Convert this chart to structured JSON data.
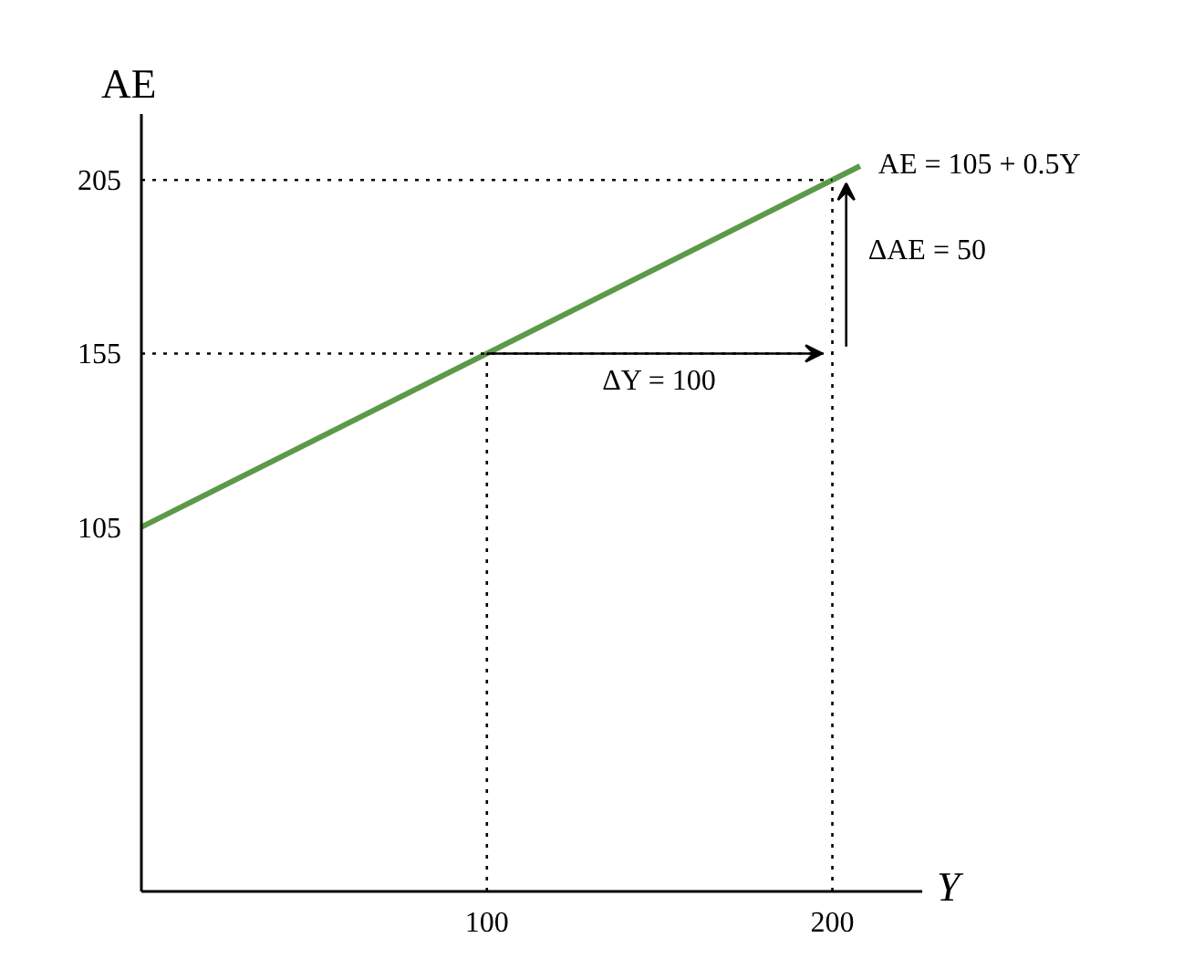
{
  "chart_data": {
    "type": "line",
    "xlabel": "Y",
    "ylabel": "AE",
    "xlim": [
      0,
      226
    ],
    "ylim": [
      0,
      224
    ],
    "xticks": [
      100,
      200
    ],
    "yticks": [
      105,
      155,
      205
    ],
    "grid": false,
    "legend": false,
    "line_style": "solid",
    "marker": "none",
    "series": [
      {
        "name": "AE = 105 + 0.5Y",
        "color": "#5b9a48",
        "x": [
          0,
          208
        ],
        "values": [
          105,
          209
        ]
      },
      {
        "type": "line",
        "line_style": "dotted",
        "color": "#000000",
        "x": [
          0,
          200
        ],
        "values": [
          205,
          205
        ]
      },
      {
        "type": "line",
        "line_style": "dotted",
        "color": "#000000",
        "x": [
          0,
          200
        ],
        "values": [
          155,
          155
        ]
      },
      {
        "type": "line",
        "line_style": "dotted",
        "color": "#000000",
        "x": [
          100,
          100
        ],
        "values": [
          0,
          155
        ]
      },
      {
        "type": "line",
        "line_style": "dotted",
        "color": "#000000",
        "x": [
          200,
          200
        ],
        "values": [
          0,
          205
        ]
      }
    ],
    "annotations": [
      "ΔY = 100",
      "ΔAE = 50"
    ]
  }
}
